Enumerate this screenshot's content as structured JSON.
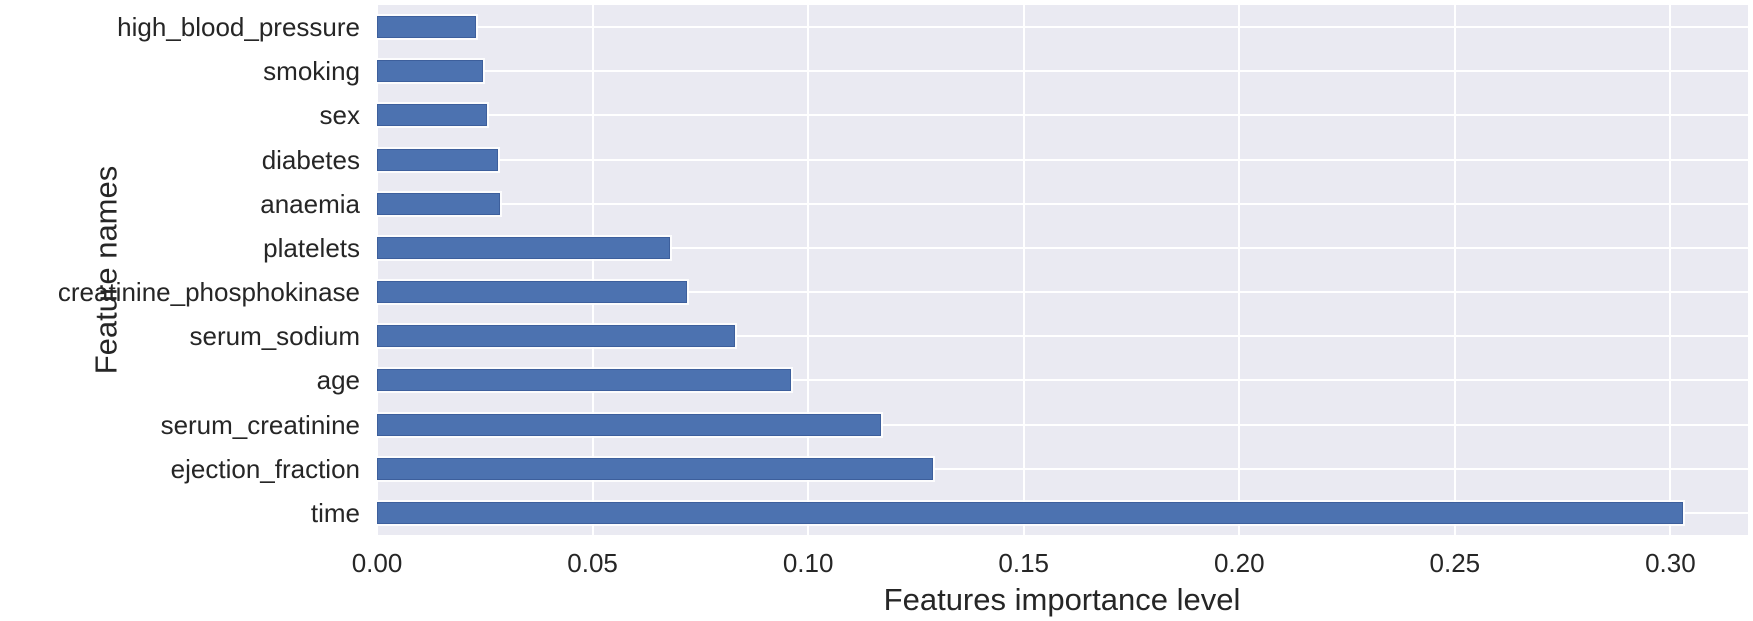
{
  "chart_data": {
    "type": "bar",
    "orientation": "horizontal",
    "title": "",
    "xlabel": "Features importance level",
    "ylabel": "Feature names",
    "categories": [
      "high_blood_pressure",
      "smoking",
      "sex",
      "diabetes",
      "anaemia",
      "platelets",
      "creatinine_phosphokinase",
      "serum_sodium",
      "age",
      "serum_creatinine",
      "ejection_fraction",
      "time"
    ],
    "values": [
      0.023,
      0.0245,
      0.0255,
      0.028,
      0.0285,
      0.068,
      0.072,
      0.083,
      0.096,
      0.117,
      0.129,
      0.303
    ],
    "xlim": [
      0,
      0.318
    ],
    "xticks": [
      {
        "value": 0.0,
        "label": "0.00"
      },
      {
        "value": 0.05,
        "label": "0.05"
      },
      {
        "value": 0.1,
        "label": "0.10"
      },
      {
        "value": 0.15,
        "label": "0.15"
      },
      {
        "value": 0.2,
        "label": "0.20"
      },
      {
        "value": 0.25,
        "label": "0.25"
      },
      {
        "value": 0.3,
        "label": "0.30"
      }
    ],
    "grid": "on",
    "legend": "none",
    "colors": {
      "bar_fill": "#4c72b0",
      "bar_edge": "#3d5f9c",
      "plot_background": "#eaeaf2",
      "gridline": "#ffffff",
      "text": "#262626",
      "figure_background": "#ffffff"
    }
  }
}
